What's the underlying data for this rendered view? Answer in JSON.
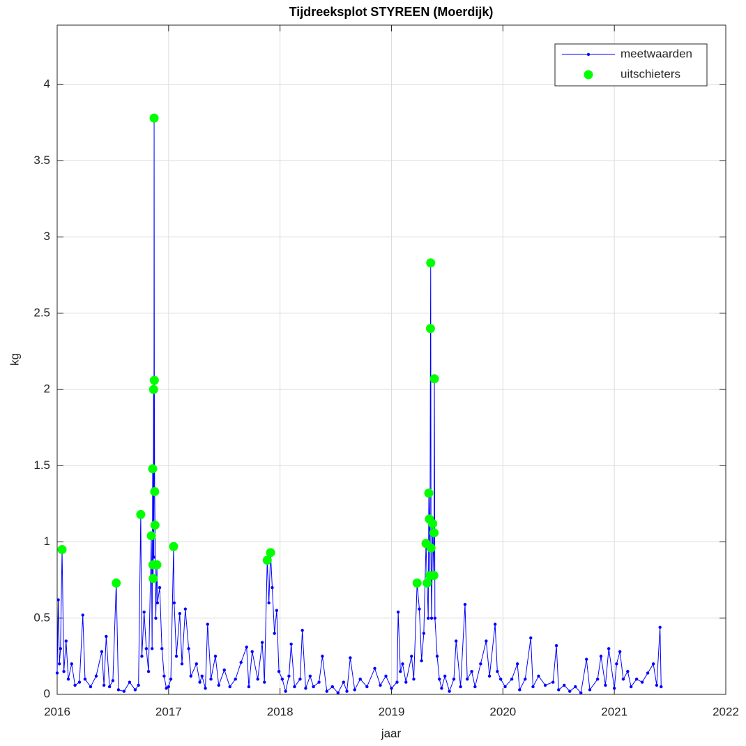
{
  "chart_data": {
    "type": "line",
    "title": "Tijdreeksplot STYREEN (Moerdijk)",
    "x_label": "jaar",
    "y_label": "kg",
    "xlim": [
      2016,
      2022
    ],
    "xticks": [
      2016,
      2017,
      2018,
      2019,
      2020,
      2021,
      2022
    ],
    "ylim": [
      0,
      4.39
    ],
    "yticks": [
      0,
      0.5,
      1,
      1.5,
      2,
      2.5,
      3,
      3.5,
      4
    ],
    "grid": true,
    "legend": "upper right",
    "series": [
      {
        "name": "meetwaarden",
        "color": "#0000ff",
        "style": "line-dots",
        "x": [
          2016.0,
          2016.01,
          2016.02,
          2016.03,
          2016.044,
          2016.06,
          2016.08,
          2016.1,
          2016.13,
          2016.16,
          2016.2,
          2016.23,
          2016.25,
          2016.3,
          2016.35,
          2016.4,
          2016.42,
          2016.44,
          2016.47,
          2016.5,
          2016.53,
          2016.55,
          2016.6,
          2016.65,
          2016.7,
          2016.73,
          2016.75,
          2016.76,
          2016.78,
          2016.8,
          2016.82,
          2016.845,
          2016.852,
          2016.857,
          2016.86,
          2016.862,
          2016.865,
          2016.868,
          2016.87,
          2016.872,
          2016.875,
          2016.878,
          2016.885,
          2016.895,
          2016.9,
          2016.92,
          2016.94,
          2016.96,
          2016.98,
          2017.0,
          2017.02,
          2017.045,
          2017.05,
          2017.07,
          2017.1,
          2017.12,
          2017.15,
          2017.18,
          2017.2,
          2017.25,
          2017.28,
          2017.3,
          2017.33,
          2017.35,
          2017.38,
          2017.42,
          2017.45,
          2017.5,
          2017.55,
          2017.6,
          2017.65,
          2017.7,
          2017.72,
          2017.75,
          2017.8,
          2017.84,
          2017.86,
          2017.885,
          2017.9,
          2017.915,
          2017.93,
          2017.95,
          2017.97,
          2017.99,
          2018.02,
          2018.05,
          2018.08,
          2018.1,
          2018.13,
          2018.18,
          2018.2,
          2018.23,
          2018.27,
          2018.3,
          2018.35,
          2018.38,
          2018.42,
          2018.47,
          2018.52,
          2018.57,
          2018.6,
          2018.63,
          2018.67,
          2018.72,
          2018.78,
          2018.85,
          2018.9,
          2018.95,
          2019.0,
          2019.05,
          2019.06,
          2019.08,
          2019.1,
          2019.13,
          2019.18,
          2019.2,
          2019.23,
          2019.25,
          2019.27,
          2019.29,
          2019.31,
          2019.32,
          2019.33,
          2019.335,
          2019.34,
          2019.345,
          2019.35,
          2019.352,
          2019.355,
          2019.36,
          2019.37,
          2019.38,
          2019.382,
          2019.385,
          2019.39,
          2019.41,
          2019.43,
          2019.45,
          2019.48,
          2019.52,
          2019.56,
          2019.58,
          2019.62,
          2019.66,
          2019.68,
          2019.72,
          2019.75,
          2019.8,
          2019.85,
          2019.88,
          2019.93,
          2019.95,
          2019.98,
          2020.02,
          2020.08,
          2020.13,
          2020.15,
          2020.2,
          2020.25,
          2020.27,
          2020.32,
          2020.38,
          2020.45,
          2020.48,
          2020.5,
          2020.55,
          2020.6,
          2020.65,
          2020.7,
          2020.75,
          2020.78,
          2020.85,
          2020.88,
          2020.92,
          2020.95,
          2021.0,
          2021.02,
          2021.05,
          2021.08,
          2021.12,
          2021.15,
          2021.2,
          2021.25,
          2021.3,
          2021.35,
          2021.38,
          2021.41,
          2021.42
        ],
        "values": [
          0.14,
          0.62,
          0.2,
          0.3,
          0.95,
          0.15,
          0.35,
          0.1,
          0.2,
          0.06,
          0.08,
          0.52,
          0.1,
          0.05,
          0.12,
          0.28,
          0.06,
          0.38,
          0.05,
          0.09,
          0.73,
          0.03,
          0.02,
          0.08,
          0.03,
          0.06,
          1.18,
          0.25,
          0.54,
          0.3,
          0.15,
          1.04,
          0.3,
          1.48,
          0.85,
          0.76,
          2.0,
          0.9,
          3.78,
          2.06,
          1.33,
          1.11,
          0.5,
          0.85,
          0.6,
          0.7,
          0.3,
          0.12,
          0.04,
          0.05,
          0.1,
          0.97,
          0.6,
          0.25,
          0.53,
          0.2,
          0.56,
          0.3,
          0.12,
          0.2,
          0.08,
          0.12,
          0.04,
          0.46,
          0.1,
          0.25,
          0.06,
          0.16,
          0.05,
          0.1,
          0.21,
          0.31,
          0.05,
          0.28,
          0.1,
          0.34,
          0.08,
          0.88,
          0.6,
          0.93,
          0.7,
          0.4,
          0.55,
          0.15,
          0.1,
          0.02,
          0.12,
          0.33,
          0.05,
          0.1,
          0.42,
          0.04,
          0.12,
          0.05,
          0.08,
          0.25,
          0.02,
          0.05,
          0.01,
          0.08,
          0.02,
          0.24,
          0.03,
          0.1,
          0.05,
          0.17,
          0.06,
          0.12,
          0.04,
          0.08,
          0.54,
          0.15,
          0.2,
          0.08,
          0.25,
          0.1,
          0.73,
          0.56,
          0.22,
          0.4,
          0.99,
          0.73,
          0.5,
          1.32,
          1.15,
          0.78,
          2.4,
          2.83,
          0.96,
          0.5,
          1.12,
          0.78,
          1.06,
          2.07,
          0.5,
          0.25,
          0.1,
          0.04,
          0.12,
          0.02,
          0.1,
          0.35,
          0.05,
          0.59,
          0.1,
          0.15,
          0.05,
          0.2,
          0.35,
          0.12,
          0.46,
          0.15,
          0.1,
          0.05,
          0.1,
          0.2,
          0.03,
          0.1,
          0.37,
          0.05,
          0.12,
          0.06,
          0.08,
          0.32,
          0.03,
          0.06,
          0.02,
          0.05,
          0.01,
          0.23,
          0.03,
          0.1,
          0.25,
          0.06,
          0.3,
          0.04,
          0.2,
          0.28,
          0.1,
          0.15,
          0.05,
          0.1,
          0.08,
          0.14,
          0.2,
          0.06,
          0.44,
          0.05
        ]
      },
      {
        "name": "uitschieters",
        "color": "#00ff00",
        "style": "markers",
        "x": [
          2016.044,
          2016.53,
          2016.75,
          2016.845,
          2016.857,
          2016.86,
          2016.862,
          2016.865,
          2016.87,
          2016.872,
          2016.875,
          2016.878,
          2016.895,
          2017.045,
          2017.885,
          2017.915,
          2019.23,
          2019.31,
          2019.32,
          2019.335,
          2019.34,
          2019.345,
          2019.35,
          2019.352,
          2019.355,
          2019.37,
          2019.38,
          2019.382,
          2019.385
        ],
        "values": [
          0.95,
          0.73,
          1.18,
          1.04,
          1.48,
          0.85,
          0.76,
          2.0,
          3.78,
          2.06,
          1.33,
          1.11,
          0.85,
          0.97,
          0.88,
          0.93,
          0.73,
          0.99,
          0.73,
          1.32,
          1.15,
          0.78,
          2.4,
          2.83,
          0.96,
          1.12,
          0.78,
          1.06,
          2.07
        ]
      }
    ]
  }
}
